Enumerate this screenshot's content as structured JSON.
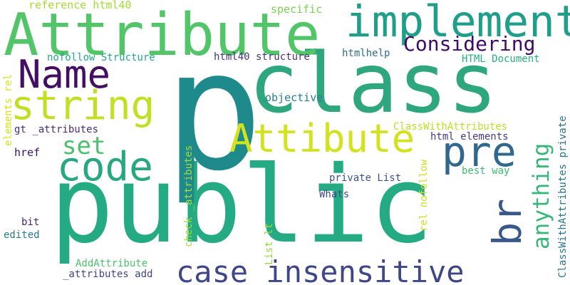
{
  "words": [
    {
      "text": "public",
      "color": "#25ab83"
    },
    {
      "text": "p",
      "color": "#1f8a8c"
    },
    {
      "text": "class",
      "color": "#2ea77f"
    },
    {
      "text": "Attribute",
      "color": "#52c569"
    },
    {
      "text": "implement",
      "color": "#1f9e89"
    },
    {
      "text": "case insensitive",
      "color": "#3f4788"
    },
    {
      "text": "Name",
      "color": "#440f63"
    },
    {
      "text": "string",
      "color": "#c2df23"
    },
    {
      "text": "Attibute",
      "color": "#d2e21b"
    },
    {
      "text": "code",
      "color": "#27a882"
    },
    {
      "text": "pre",
      "color": "#31688e"
    },
    {
      "text": "br",
      "color": "#38588c"
    },
    {
      "text": "Considering",
      "color": "#420a68"
    },
    {
      "text": "anything",
      "color": "#35b779"
    },
    {
      "text": "set",
      "color": "#4ac16d"
    },
    {
      "text": "reference html40",
      "color": "#a2da37"
    },
    {
      "text": "specific",
      "color": "#7ad151"
    },
    {
      "text": "nofollow Structure",
      "color": "#22a884"
    },
    {
      "text": "html40 structure",
      "color": "#46327e"
    },
    {
      "text": "htmlhelp",
      "color": "#2f6c8e"
    },
    {
      "text": "HTML Document",
      "color": "#29af7f"
    },
    {
      "text": "elements rel",
      "color": "#d8e219"
    },
    {
      "text": "objective",
      "color": "#277f8e"
    },
    {
      "text": "gt _attributes",
      "color": "#472d7b"
    },
    {
      "text": "ClassWithAttributes",
      "color": "#bddf26"
    },
    {
      "text": "html elements",
      "color": "#443983"
    },
    {
      "text": "ClassWithAttributes private",
      "color": "#2c728e"
    },
    {
      "text": "check _attributes",
      "color": "#a5db36"
    },
    {
      "text": "href",
      "color": "#3b0f70"
    },
    {
      "text": "rel nofollow",
      "color": "#cde11d"
    },
    {
      "text": "best way",
      "color": "#3dbc74"
    },
    {
      "text": "private List",
      "color": "#3b528b"
    },
    {
      "text": "Whats",
      "color": "#3e4a89"
    },
    {
      "text": "bit",
      "color": "#482475"
    },
    {
      "text": "List lt",
      "color": "#9dd93b"
    },
    {
      "text": "edited",
      "color": "#2a788e"
    },
    {
      "text": "AddAttribute",
      "color": "#4cc26c"
    },
    {
      "text": "_attributes add",
      "color": "#414487"
    }
  ]
}
